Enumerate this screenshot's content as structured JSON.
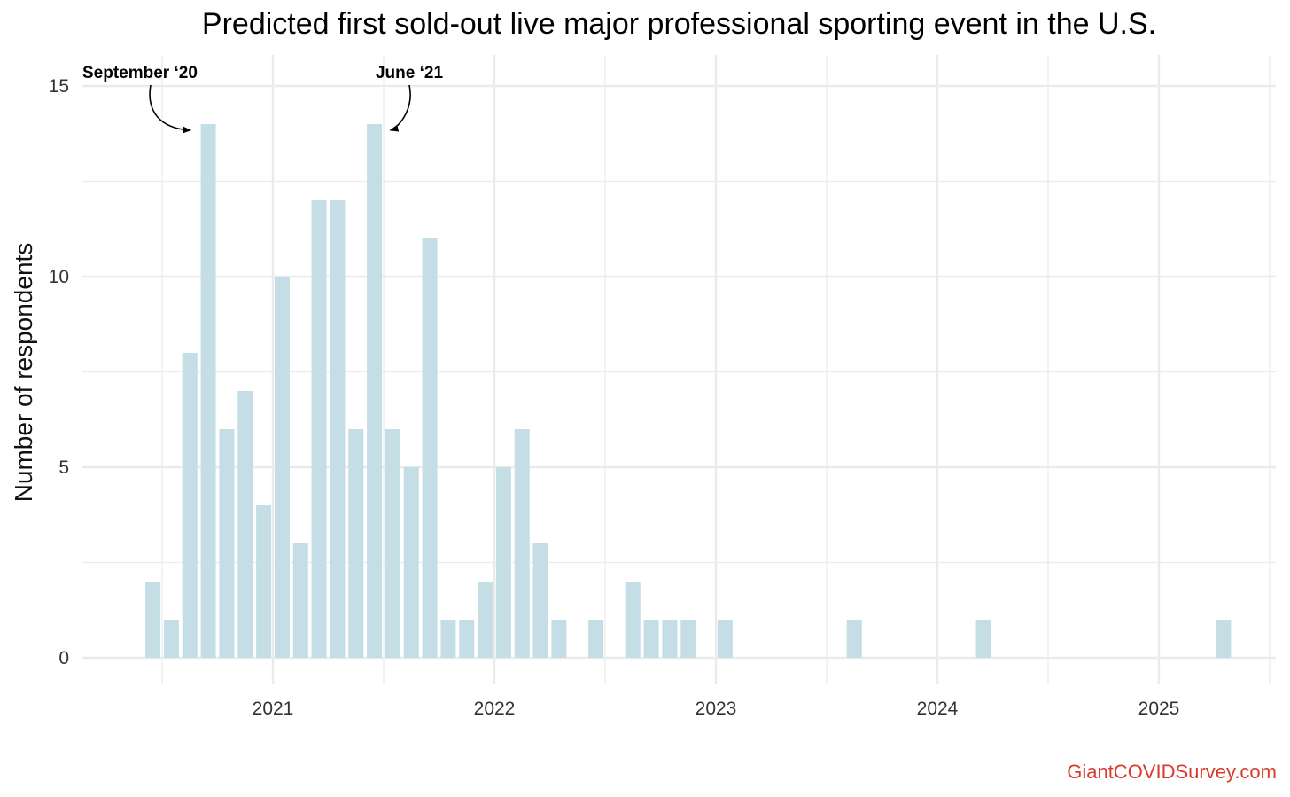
{
  "chart_data": {
    "type": "bar",
    "title": "Predicted first sold-out live major professional sporting event in the U.S.",
    "xlabel": "",
    "ylabel": "Number of respondents",
    "ylim": [
      0,
      15
    ],
    "yticks": [
      0,
      5,
      10,
      15
    ],
    "xticks": [
      "2021",
      "2022",
      "2023",
      "2024",
      "2025"
    ],
    "grid": true,
    "bar_color": "#c5dee5",
    "series": [
      {
        "x": [
          "2020-06",
          "2020-07",
          "2020-08",
          "2020-09",
          "2020-10",
          "2020-11",
          "2020-12",
          "2021-01",
          "2021-02",
          "2021-03",
          "2021-04",
          "2021-05",
          "2021-06",
          "2021-07",
          "2021-08",
          "2021-09",
          "2021-10",
          "2021-11",
          "2021-12",
          "2022-01",
          "2022-02",
          "2022-03",
          "2022-04",
          "2022-06",
          "2022-08",
          "2022-09",
          "2022-10",
          "2022-11",
          "2023-01",
          "2023-08",
          "2024-03",
          "2025-04"
        ],
        "values": [
          2,
          1,
          8,
          14,
          6,
          7,
          4,
          10,
          3,
          12,
          12,
          6,
          14,
          6,
          5,
          11,
          1,
          1,
          2,
          5,
          6,
          3,
          1,
          1,
          2,
          1,
          1,
          1,
          1,
          1,
          1,
          1
        ]
      }
    ],
    "annotations": [
      {
        "text": "September ‘20",
        "target": "2020-09"
      },
      {
        "text": "June ‘21",
        "target": "2021-06"
      }
    ]
  },
  "source_label": "GiantCOVIDSurvey.com"
}
